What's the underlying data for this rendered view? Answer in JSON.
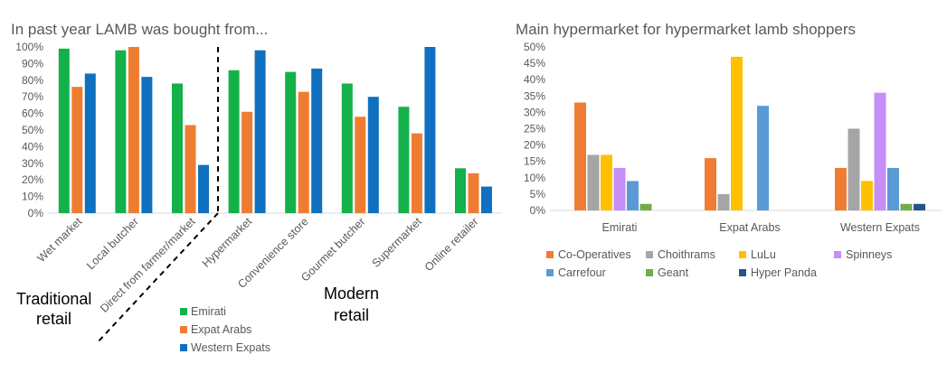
{
  "colors": {
    "emirati": "#14b14a",
    "expat_arabs": "#ef7d31",
    "western_expats": "#1070c0",
    "co_operatives": "#ef7d31",
    "choithrams": "#a5a5a5",
    "lulu": "#ffc000",
    "spinneys": "#c58ef8",
    "carrefour": "#5b9bd5",
    "geant": "#70ad47",
    "hyper_panda": "#25538e",
    "axis": "#d9d9d9",
    "text": "#595959"
  },
  "annotations": {
    "traditional": "Traditional\nretail",
    "modern": "Modern\nretail"
  },
  "chart_data": [
    {
      "type": "bar",
      "title": "In past year LAMB was bought from...",
      "categories": [
        "Wet market",
        "Local butcher",
        "Direct from farmer/market",
        "Hypermarket",
        "Convenience store",
        "Gourmet butcher",
        "Supermarket",
        "Online retailer"
      ],
      "series": [
        {
          "name": "Emirati",
          "values": [
            99,
            98,
            78,
            86,
            85,
            78,
            64,
            27
          ]
        },
        {
          "name": "Expat Arabs",
          "values": [
            76,
            100,
            53,
            61,
            73,
            58,
            48,
            24
          ]
        },
        {
          "name": "Western Expats",
          "values": [
            84,
            82,
            29,
            98,
            87,
            70,
            100,
            16
          ]
        }
      ],
      "ylim": [
        0,
        100
      ],
      "yticks": [
        "0%",
        "10%",
        "20%",
        "30%",
        "40%",
        "50%",
        "60%",
        "70%",
        "80%",
        "90%",
        "100%"
      ],
      "grid": false,
      "legend": "bottom"
    },
    {
      "type": "bar",
      "title": "Main hypermarket for hypermarket lamb shoppers",
      "categories": [
        "Emirati",
        "Expat Arabs",
        "Western Expats"
      ],
      "series": [
        {
          "name": "Co-Operatives",
          "values": [
            33,
            16,
            13
          ]
        },
        {
          "name": "Choithrams",
          "values": [
            17,
            5,
            25
          ]
        },
        {
          "name": "LuLu",
          "values": [
            17,
            47,
            9
          ]
        },
        {
          "name": "Spinneys",
          "values": [
            13,
            0,
            36
          ]
        },
        {
          "name": "Carrefour",
          "values": [
            9,
            32,
            13
          ]
        },
        {
          "name": "Geant",
          "values": [
            2,
            0,
            2
          ]
        },
        {
          "name": "Hyper Panda",
          "values": [
            0,
            0,
            2
          ]
        }
      ],
      "ylim": [
        0,
        50
      ],
      "yticks": [
        "0%",
        "5%",
        "10%",
        "15%",
        "20%",
        "25%",
        "30%",
        "35%",
        "40%",
        "45%",
        "50%"
      ],
      "grid": false,
      "legend": "bottom"
    }
  ]
}
